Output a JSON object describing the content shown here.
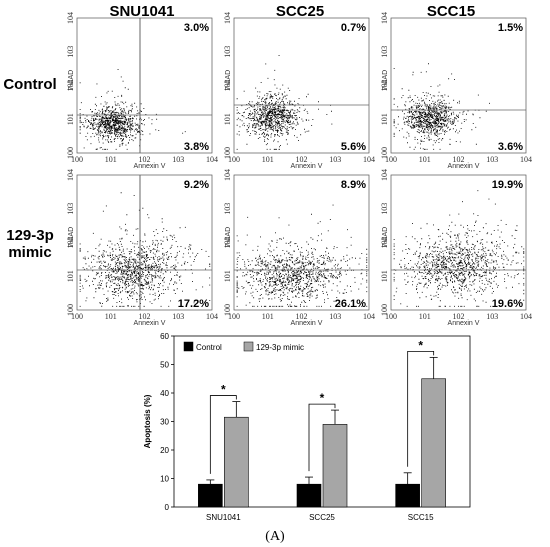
{
  "figure": {
    "column_titles": [
      "SNU1041",
      "SCC25",
      "SCC15"
    ],
    "row_labels": [
      [
        "Control"
      ],
      [
        "129-3p",
        "mimic"
      ]
    ],
    "caption": "(A)"
  },
  "chart_data": [
    {
      "type": "scatter",
      "description_of_grid": "flow cytometry dot plots, 2 rows x 3 columns",
      "xlabel": "Annexin V",
      "ylabel": "7-AAD",
      "xscale": "log",
      "yscale": "log",
      "xlim": [
        1,
        10000
      ],
      "ylim": [
        1,
        10000
      ],
      "x_ticks": [
        "100",
        "101",
        "102",
        "103",
        "104"
      ],
      "y_ticks": [
        "100",
        "101",
        "102",
        "103",
        "104"
      ],
      "panels": [
        {
          "row": "Control",
          "cell_line": "SNU1041",
          "upper_right": "3.0%",
          "lower_right": "3.8%"
        },
        {
          "row": "Control",
          "cell_line": "SCC25",
          "upper_right": "0.7%",
          "lower_right": "5.6%"
        },
        {
          "row": "Control",
          "cell_line": "SCC15",
          "upper_right": "1.5%",
          "lower_right": "3.6%"
        },
        {
          "row": "129-3p mimic",
          "cell_line": "SNU1041",
          "upper_right": "9.2%",
          "lower_right": "17.2%"
        },
        {
          "row": "129-3p mimic",
          "cell_line": "SCC25",
          "upper_right": "8.9%",
          "lower_right": "26.1%"
        },
        {
          "row": "129-3p mimic",
          "cell_line": "SCC15",
          "upper_right": "19.9%",
          "lower_right": "19.6%"
        }
      ]
    },
    {
      "type": "bar",
      "categories": [
        "SNU1041",
        "SCC25",
        "SCC15"
      ],
      "series": [
        {
          "name": "Control",
          "color": "#000000",
          "values": [
            8,
            8,
            8
          ],
          "errors": [
            1.5,
            2.5,
            4
          ]
        },
        {
          "name": "129-3p mimic",
          "color": "#a6a6a6",
          "values": [
            31.5,
            29,
            45
          ],
          "errors": [
            5.5,
            5,
            7.5
          ]
        }
      ],
      "ylabel": "Apoptosis (%)",
      "ylim": [
        0,
        60
      ],
      "y_ticks": [
        "0",
        "10",
        "20",
        "30",
        "40",
        "50",
        "60"
      ],
      "significance": [
        "*",
        "*",
        "*"
      ],
      "legend_position": "top-left"
    }
  ]
}
